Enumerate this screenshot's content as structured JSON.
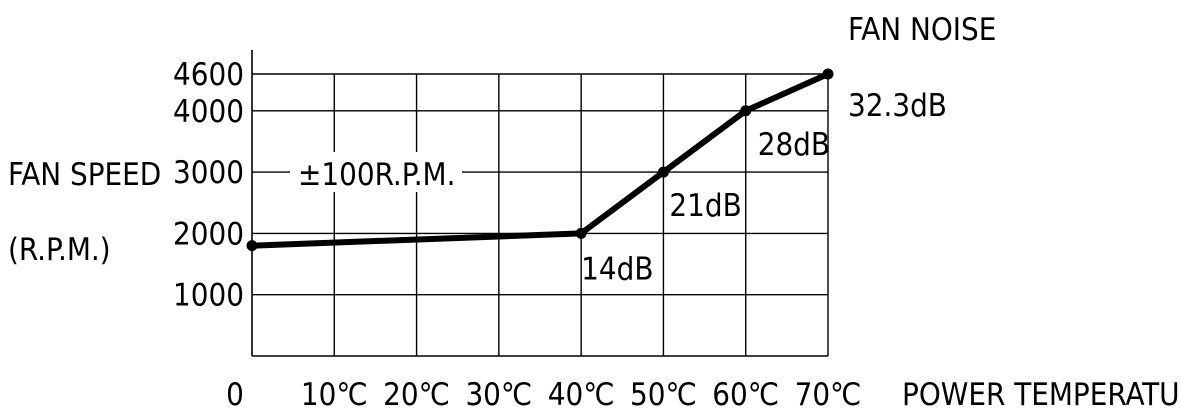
{
  "chart_data": {
    "type": "line",
    "title": "",
    "xlabel": "POWER TEMPERATURE",
    "ylabel_line1": "FAN SPEED",
    "ylabel_line2": "(R.P.M.)",
    "noise_header": "FAN NOISE",
    "tolerance_label": "±100R.P.M.",
    "x_ticks": [
      {
        "value": 0,
        "label": "0"
      },
      {
        "value": 10,
        "label": "10℃"
      },
      {
        "value": 20,
        "label": "20℃"
      },
      {
        "value": 30,
        "label": "30℃"
      },
      {
        "value": 40,
        "label": "40℃"
      },
      {
        "value": 50,
        "label": "50℃"
      },
      {
        "value": 60,
        "label": "60℃"
      },
      {
        "value": 70,
        "label": "70℃"
      }
    ],
    "y_ticks": [
      {
        "value": 1000,
        "label": "1000"
      },
      {
        "value": 2000,
        "label": "2000"
      },
      {
        "value": 3000,
        "label": "3000"
      },
      {
        "value": 4000,
        "label": "4000"
      },
      {
        "value": 4600,
        "label": "4600"
      }
    ],
    "xlim": [
      0,
      70
    ],
    "ylim": [
      0,
      4600
    ],
    "grid": true,
    "series": [
      {
        "x": [
          0,
          40,
          50,
          60,
          70
        ],
        "y": [
          1800,
          2000,
          3000,
          4000,
          4600
        ]
      }
    ],
    "noise_labels": [
      {
        "x": 40,
        "y": 2000,
        "text": "14dB"
      },
      {
        "x": 50,
        "y": 3000,
        "text": "21dB"
      },
      {
        "x": 60,
        "y": 4000,
        "text": "28dB"
      },
      {
        "x": 70,
        "y": 4600,
        "text": "32.3dB"
      }
    ]
  }
}
